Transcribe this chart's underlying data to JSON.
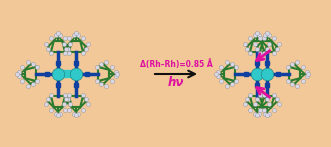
{
  "background_color": "#f2c898",
  "arrow_color": "#111111",
  "arrow_label_top": "hν",
  "arrow_label_bottom": "Δ(Rh–Rh)=0.85 Å",
  "label_color": "#dd10a0",
  "figsize": [
    3.31,
    1.47
  ],
  "dpi": 100,
  "rh_color": "#30c8c8",
  "bond_blue": "#1040a0",
  "bond_green": "#2a7a30",
  "bond_teal": "#208878",
  "atom_white": "#d8d8e8",
  "magenta": "#e010a0"
}
